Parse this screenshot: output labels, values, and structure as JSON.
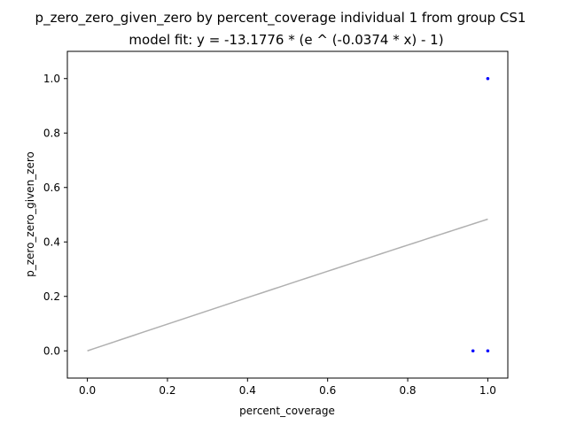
{
  "chart_data": {
    "type": "scatter",
    "title": "p_zero_zero_given_zero by percent_coverage individual 1 from group CS1",
    "subtitle": "model fit: y = -13.1776 * (e ^ (-0.0374 * x) - 1)",
    "xlabel": "percent_coverage",
    "ylabel": "p_zero_zero_given_zero",
    "xlim": [
      -0.05,
      1.05
    ],
    "ylim": [
      -0.1,
      1.1
    ],
    "xticks": [
      0.0,
      0.2,
      0.4,
      0.6,
      0.8,
      1.0
    ],
    "xtick_labels": [
      "0.0",
      "0.2",
      "0.4",
      "0.6",
      "0.8",
      "1.0"
    ],
    "yticks": [
      0.0,
      0.2,
      0.4,
      0.6,
      0.8,
      1.0
    ],
    "ytick_labels": [
      "0.0",
      "0.2",
      "0.4",
      "0.6",
      "0.8",
      "1.0"
    ],
    "grid": false,
    "points": {
      "color": "#0000ff",
      "x": [
        0.963,
        1.0,
        1.0
      ],
      "y": [
        0.0,
        0.0,
        1.0
      ]
    },
    "fit": {
      "color": "#b0b0b0",
      "a": -13.1776,
      "b": -0.0374,
      "x_range": [
        0.0,
        1.0
      ]
    }
  }
}
